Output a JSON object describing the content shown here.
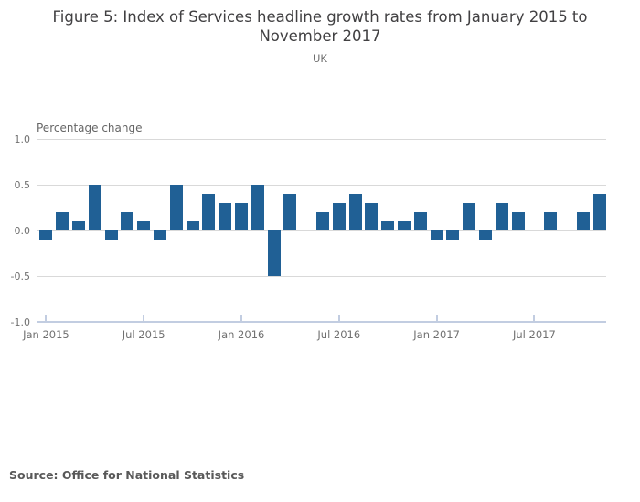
{
  "header": {
    "title": "Figure 5: Index of Services headline growth rates from January 2015 to November 2017",
    "subtitle": "UK"
  },
  "chart_data": {
    "type": "bar",
    "title": "Figure 5: Index of Services headline growth rates from January 2015 to November 2017",
    "subtitle": "UK",
    "ylabel": "Percentage change",
    "xlabel": "",
    "grid": true,
    "legend_position": "none",
    "ylim": [
      -1.0,
      1.0
    ],
    "yticks": [
      1.0,
      0.5,
      0.0,
      -0.5,
      -1.0
    ],
    "ytick_labels": [
      "1.0",
      "0.5",
      "0.0",
      "-0.5",
      "-1.0"
    ],
    "xtick_indices": [
      0,
      6,
      12,
      18,
      24,
      30
    ],
    "xtick_labels": [
      "Jan 2015",
      "Jul 2015",
      "Jan 2016",
      "Jul 2016",
      "Jan 2017",
      "Jul 2017"
    ],
    "categories": [
      "Jan 2015",
      "Feb 2015",
      "Mar 2015",
      "Apr 2015",
      "May 2015",
      "Jun 2015",
      "Jul 2015",
      "Aug 2015",
      "Sep 2015",
      "Oct 2015",
      "Nov 2015",
      "Dec 2015",
      "Jan 2016",
      "Feb 2016",
      "Mar 2016",
      "Apr 2016",
      "May 2016",
      "Jun 2016",
      "Jul 2016",
      "Aug 2016",
      "Sep 2016",
      "Oct 2016",
      "Nov 2016",
      "Dec 2016",
      "Jan 2017",
      "Feb 2017",
      "Mar 2017",
      "Apr 2017",
      "May 2017",
      "Jun 2017",
      "Jul 2017",
      "Aug 2017",
      "Sep 2017",
      "Oct 2017",
      "Nov 2017"
    ],
    "values": [
      -0.1,
      0.2,
      0.1,
      0.5,
      -0.1,
      0.2,
      0.1,
      -0.1,
      0.5,
      0.1,
      0.4,
      0.3,
      0.3,
      0.5,
      -0.5,
      0.4,
      0.0,
      0.2,
      0.3,
      0.4,
      0.3,
      0.1,
      0.1,
      0.2,
      -0.1,
      -0.1,
      0.3,
      -0.1,
      0.3,
      0.2,
      0.0,
      0.2,
      0.0,
      0.2,
      0.4
    ],
    "colors": {
      "bar": "#206095",
      "gridline": "#d9d9d9",
      "axis_line": "#c2cde1",
      "tick_text": "#707070",
      "title_text": "#414042"
    }
  },
  "footer": {
    "source": "Source: Office for National Statistics"
  }
}
